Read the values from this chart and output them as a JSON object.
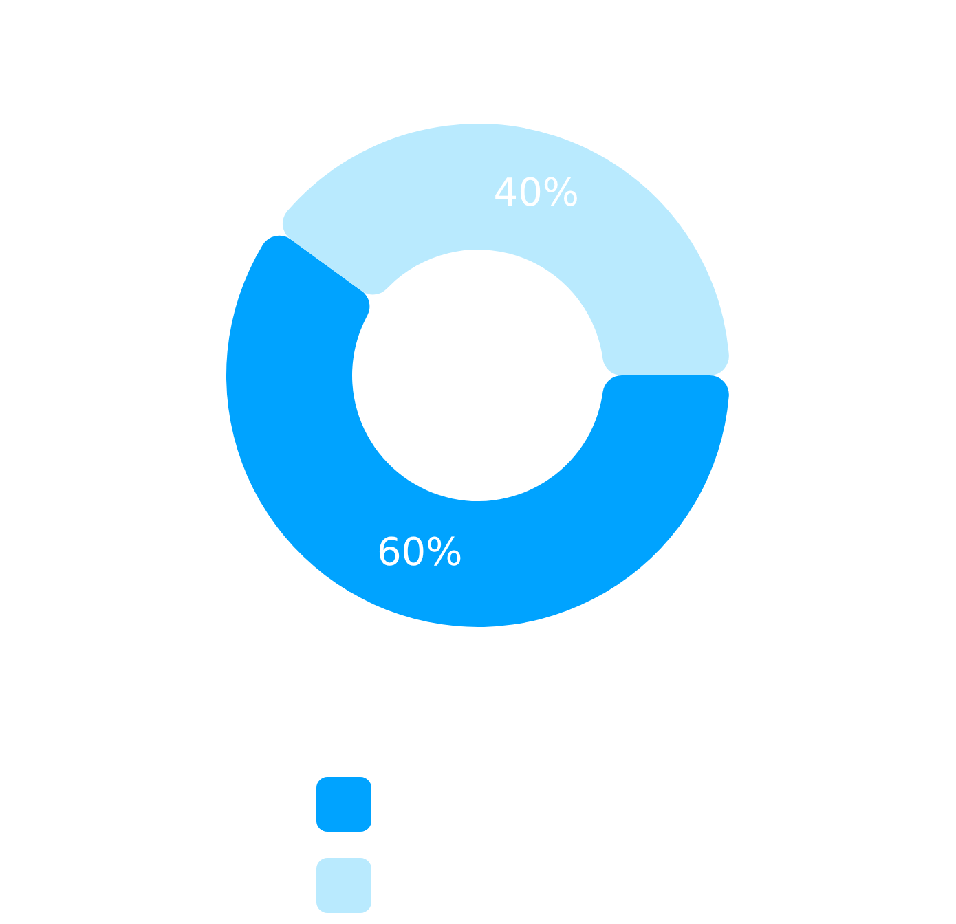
{
  "chart_data": {
    "type": "donut",
    "categories": [
      null,
      null
    ],
    "values": [
      60,
      40
    ],
    "colors": [
      "#00a3ff",
      "#b9eafe"
    ],
    "value_labels": [
      "60%",
      "40%"
    ]
  }
}
